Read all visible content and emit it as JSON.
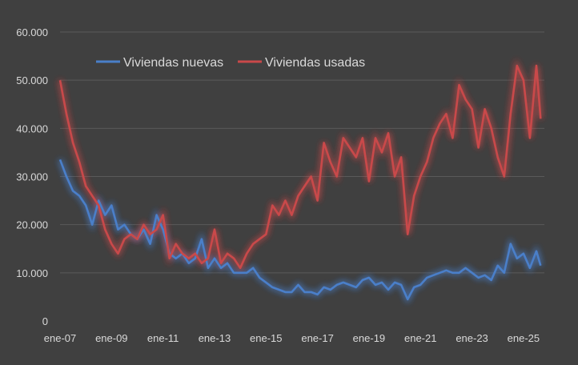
{
  "chart_data": {
    "type": "line",
    "title": "",
    "xlabel": "",
    "ylabel": "",
    "ylim": [
      0,
      60000
    ],
    "yticks": [
      "0",
      "10.000",
      "20.000",
      "30.000",
      "40.000",
      "50.000",
      "60.000"
    ],
    "xtick_labels": [
      "ene-07",
      "ene-09",
      "ene-11",
      "ene-13",
      "ene-15",
      "ene-17",
      "ene-19",
      "ene-21",
      "ene-23",
      "ene-25"
    ],
    "grid": "horizontal",
    "legend_placement": "top-left",
    "background": "#404040",
    "x": [
      "2007-01",
      "2007-04",
      "2007-07",
      "2007-10",
      "2008-01",
      "2008-04",
      "2008-07",
      "2008-10",
      "2009-01",
      "2009-04",
      "2009-07",
      "2009-10",
      "2010-01",
      "2010-04",
      "2010-07",
      "2010-10",
      "2011-01",
      "2011-04",
      "2011-07",
      "2011-10",
      "2012-01",
      "2012-04",
      "2012-07",
      "2012-10",
      "2013-01",
      "2013-04",
      "2013-07",
      "2013-10",
      "2014-01",
      "2014-04",
      "2014-07",
      "2014-10",
      "2015-01",
      "2015-04",
      "2015-07",
      "2015-10",
      "2016-01",
      "2016-04",
      "2016-07",
      "2016-10",
      "2017-01",
      "2017-04",
      "2017-07",
      "2017-10",
      "2018-01",
      "2018-04",
      "2018-07",
      "2018-10",
      "2019-01",
      "2019-04",
      "2019-07",
      "2019-10",
      "2020-01",
      "2020-04",
      "2020-07",
      "2020-10",
      "2021-01",
      "2021-04",
      "2021-07",
      "2021-10",
      "2022-01",
      "2022-04",
      "2022-07",
      "2022-10",
      "2023-01",
      "2023-04",
      "2023-07",
      "2023-10",
      "2024-01",
      "2024-04",
      "2024-07",
      "2024-10",
      "2025-01",
      "2025-04",
      "2025-07",
      "2025-09"
    ],
    "series": [
      {
        "name": "Viviendas nuevas",
        "color": "#4a7fc9",
        "values": [
          33500,
          30000,
          27000,
          26000,
          24000,
          20000,
          25000,
          22000,
          24000,
          19000,
          20000,
          18000,
          17000,
          19000,
          16000,
          22000,
          19000,
          14000,
          13000,
          14000,
          12000,
          13000,
          17000,
          11000,
          13000,
          11000,
          12000,
          10000,
          10000,
          10000,
          11000,
          9000,
          8000,
          7000,
          6500,
          6000,
          6000,
          7500,
          6000,
          6000,
          5500,
          7000,
          6500,
          7500,
          8000,
          7500,
          7000,
          8500,
          9000,
          7500,
          8000,
          6500,
          8000,
          7500,
          4500,
          7000,
          7500,
          9000,
          9500,
          10000,
          10500,
          10000,
          10000,
          11000,
          10000,
          9000,
          9500,
          8500,
          11500,
          10000,
          16000,
          13000,
          14000,
          11000,
          14500,
          11500
        ]
      },
      {
        "name": "Viviendas usadas",
        "color": "#c9494a",
        "values": [
          50000,
          43000,
          37000,
          33000,
          28000,
          26000,
          24000,
          19000,
          16000,
          14000,
          17000,
          18000,
          17000,
          20000,
          18000,
          19000,
          22000,
          13000,
          16000,
          14000,
          13000,
          14000,
          12000,
          13000,
          19000,
          12000,
          14000,
          13000,
          11000,
          14000,
          16000,
          17000,
          18000,
          24000,
          22000,
          25000,
          22000,
          26000,
          28000,
          30000,
          25000,
          37000,
          33000,
          30000,
          38000,
          36000,
          34000,
          38000,
          29000,
          38000,
          35000,
          39000,
          30000,
          34000,
          18000,
          26000,
          30000,
          33000,
          38000,
          41000,
          43000,
          38000,
          49000,
          46000,
          44000,
          36000,
          44000,
          40000,
          34000,
          30000,
          43000,
          53000,
          50000,
          38000,
          53000,
          42000
        ]
      }
    ]
  }
}
